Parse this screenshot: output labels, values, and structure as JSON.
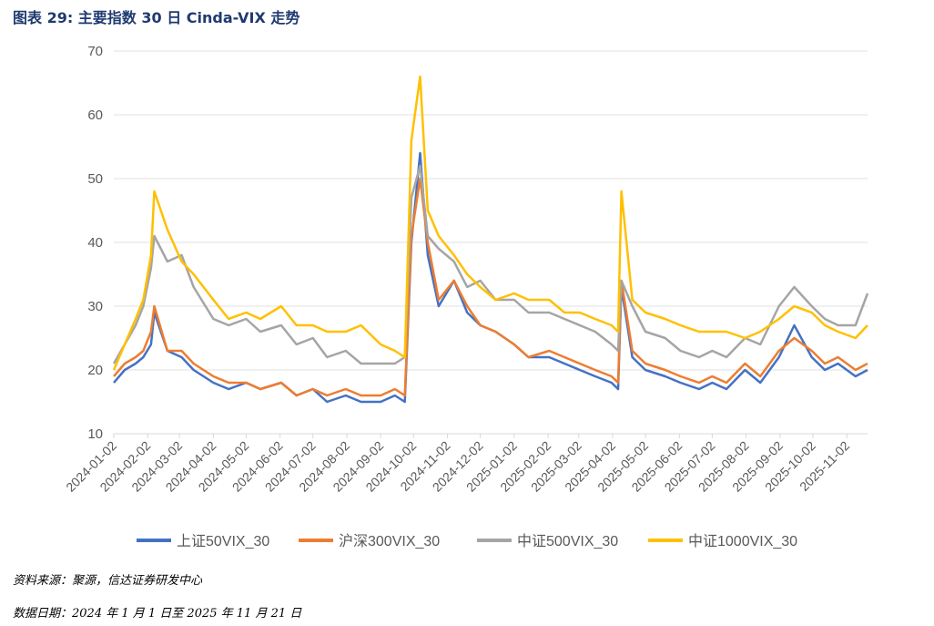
{
  "title": "图表 29:  主要指数 30 日 Cinda-VIX 走势",
  "source_text": "资料来源：聚源，信达证券研发中心",
  "date_text": "数据日期：2024 年 1 月 1 日至 2025 年 11 月 21 日",
  "colors": {
    "axis": "#d9d9d9",
    "grid": "#e0e0e0",
    "ticks": "#595959"
  },
  "chart_data": {
    "type": "line",
    "title": "",
    "xlabel": "",
    "ylabel": "",
    "ylim": [
      10,
      70
    ],
    "yticks": [
      10,
      20,
      30,
      40,
      50,
      60,
      70
    ],
    "grid": true,
    "legend_position": "bottom",
    "x_tick_labels": [
      "2024-01-02",
      "2024-02-02",
      "2024-03-02",
      "2024-04-02",
      "2024-05-02",
      "2024-06-02",
      "2024-07-02",
      "2024-08-02",
      "2024-09-02",
      "2024-10-02",
      "2024-11-02",
      "2024-12-02",
      "2025-01-02",
      "2025-02-02",
      "2025-03-02",
      "2025-04-02",
      "2025-05-02",
      "2025-06-02",
      "2025-07-02",
      "2025-08-02",
      "2025-09-02",
      "2025-10-02",
      "2025-11-02"
    ],
    "x": [
      "2024-01-02",
      "2024-01-12",
      "2024-01-22",
      "2024-01-29",
      "2024-02-05",
      "2024-02-08",
      "2024-02-20",
      "2024-03-04",
      "2024-03-15",
      "2024-04-02",
      "2024-04-16",
      "2024-05-02",
      "2024-05-15",
      "2024-06-03",
      "2024-06-17",
      "2024-07-02",
      "2024-07-15",
      "2024-08-01",
      "2024-08-15",
      "2024-09-02",
      "2024-09-15",
      "2024-09-24",
      "2024-09-30",
      "2024-10-08",
      "2024-10-15",
      "2024-10-25",
      "2024-11-08",
      "2024-11-20",
      "2024-12-02",
      "2024-12-16",
      "2025-01-02",
      "2025-01-15",
      "2025-02-03",
      "2025-02-17",
      "2025-03-03",
      "2025-03-17",
      "2025-04-01",
      "2025-04-07",
      "2025-04-10",
      "2025-04-20",
      "2025-05-02",
      "2025-05-20",
      "2025-06-03",
      "2025-06-20",
      "2025-07-02",
      "2025-07-15",
      "2025-08-01",
      "2025-08-15",
      "2025-09-01",
      "2025-09-15",
      "2025-10-01",
      "2025-10-13",
      "2025-10-25",
      "2025-11-10",
      "2025-11-21"
    ],
    "series": [
      {
        "name": "上证50VIX_30",
        "color": "#4472c4",
        "values": [
          18,
          20,
          21,
          22,
          24,
          29,
          23,
          22,
          20,
          18,
          17,
          18,
          17,
          18,
          16,
          17,
          15,
          16,
          15,
          15,
          16,
          15,
          40,
          54,
          38,
          30,
          34,
          29,
          27,
          26,
          24,
          22,
          22,
          21,
          20,
          19,
          18,
          17,
          33,
          22,
          20,
          19,
          18,
          17,
          18,
          17,
          20,
          18,
          22,
          27,
          22,
          20,
          21,
          19,
          20
        ]
      },
      {
        "name": "沪深300VIX_30",
        "color": "#ed7d31",
        "values": [
          19,
          21,
          22,
          23,
          26,
          30,
          23,
          23,
          21,
          19,
          18,
          18,
          17,
          18,
          16,
          17,
          16,
          17,
          16,
          16,
          17,
          16,
          41,
          50,
          40,
          31,
          34,
          30,
          27,
          26,
          24,
          22,
          23,
          22,
          21,
          20,
          19,
          18,
          34,
          23,
          21,
          20,
          19,
          18,
          19,
          18,
          21,
          19,
          23,
          25,
          23,
          21,
          22,
          20,
          21
        ]
      },
      {
        "name": "中证500VIX_30",
        "color": "#a5a5a5",
        "values": [
          21,
          24,
          27,
          30,
          36,
          41,
          37,
          38,
          33,
          28,
          27,
          28,
          26,
          27,
          24,
          25,
          22,
          23,
          21,
          21,
          21,
          22,
          47,
          52,
          41,
          39,
          37,
          33,
          34,
          31,
          31,
          29,
          29,
          28,
          27,
          26,
          24,
          23,
          34,
          30,
          26,
          25,
          23,
          22,
          23,
          22,
          25,
          24,
          30,
          33,
          30,
          28,
          27,
          27,
          32
        ]
      },
      {
        "name": "中证1000VIX_30",
        "color": "#ffc000",
        "values": [
          20,
          24,
          28,
          31,
          38,
          48,
          42,
          37,
          35,
          31,
          28,
          29,
          28,
          30,
          27,
          27,
          26,
          26,
          27,
          24,
          23,
          22,
          56,
          66,
          45,
          41,
          38,
          35,
          33,
          31,
          32,
          31,
          31,
          29,
          29,
          28,
          27,
          26,
          48,
          31,
          29,
          28,
          27,
          26,
          26,
          26,
          25,
          26,
          28,
          30,
          29,
          27,
          26,
          25,
          27
        ]
      }
    ]
  }
}
